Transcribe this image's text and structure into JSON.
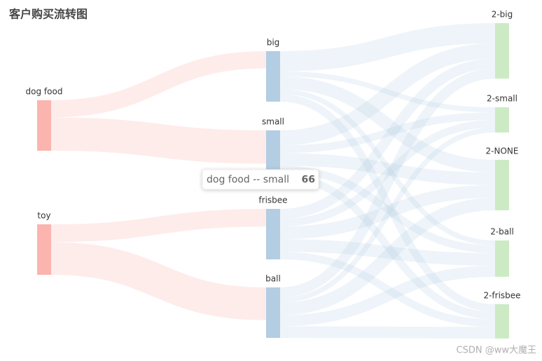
{
  "chart_data": {
    "type": "sankey",
    "title": "客户购买流转图",
    "nodes": [
      {
        "name": "dog food",
        "color": "#fbb4ae"
      },
      {
        "name": "toy",
        "color": "#fbb4ae"
      },
      {
        "name": "big",
        "color": "#b3cde3"
      },
      {
        "name": "small",
        "color": "#b3cde3"
      },
      {
        "name": "frisbee",
        "color": "#b3cde3"
      },
      {
        "name": "ball",
        "color": "#b3cde3"
      },
      {
        "name": "2-big",
        "color": "#ccebc5"
      },
      {
        "name": "2-small",
        "color": "#ccebc5"
      },
      {
        "name": "2-NONE",
        "color": "#ccebc5"
      },
      {
        "name": "2-ball",
        "color": "#ccebc5"
      },
      {
        "name": "2-frisbee",
        "color": "#ccebc5"
      }
    ],
    "links": [
      {
        "source": 0,
        "target": 2,
        "value": 34
      },
      {
        "source": 0,
        "target": 3,
        "value": 66
      },
      {
        "source": 1,
        "target": 4,
        "value": 35
      },
      {
        "source": 1,
        "target": 5,
        "value": 65
      },
      {
        "source": 2,
        "target": 6,
        "value": 40
      },
      {
        "source": 2,
        "target": 7,
        "value": 10
      },
      {
        "source": 2,
        "target": 8,
        "value": 25
      },
      {
        "source": 2,
        "target": 9,
        "value": 10
      },
      {
        "source": 2,
        "target": 10,
        "value": 15
      },
      {
        "source": 3,
        "target": 6,
        "value": 30
      },
      {
        "source": 3,
        "target": 7,
        "value": 15
      },
      {
        "source": 3,
        "target": 8,
        "value": 25
      },
      {
        "source": 3,
        "target": 9,
        "value": 15
      },
      {
        "source": 3,
        "target": 10,
        "value": 15
      },
      {
        "source": 4,
        "target": 6,
        "value": 20
      },
      {
        "source": 4,
        "target": 7,
        "value": 15
      },
      {
        "source": 4,
        "target": 8,
        "value": 25
      },
      {
        "source": 4,
        "target": 9,
        "value": 25
      },
      {
        "source": 4,
        "target": 10,
        "value": 15
      },
      {
        "source": 5,
        "target": 6,
        "value": 20
      },
      {
        "source": 5,
        "target": 7,
        "value": 10
      },
      {
        "source": 5,
        "target": 8,
        "value": 25
      },
      {
        "source": 5,
        "target": 9,
        "value": 22
      },
      {
        "source": 5,
        "target": 10,
        "value": 23
      }
    ],
    "tooltip": {
      "label": "dog food -- small",
      "link": 1
    }
  },
  "watermark": "CSDN @ww大魔王"
}
